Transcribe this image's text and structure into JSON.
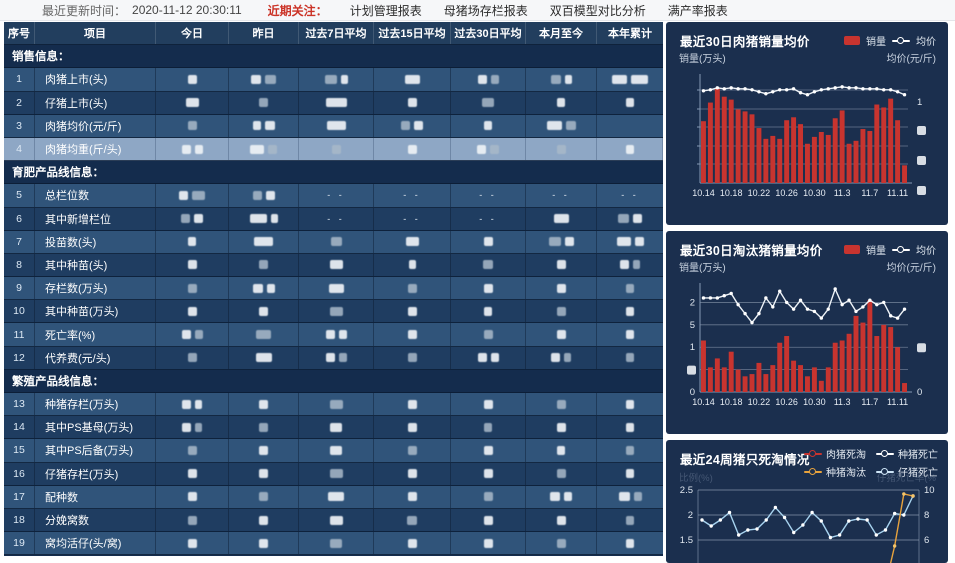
{
  "topbar": {
    "updated_label": "最近更新时间：",
    "updated_time": "2020-11-12 20:30:11",
    "focus_label": "近期关注：",
    "menu": [
      "计划管理报表",
      "母猪场存栏报表",
      "双百模型对比分析",
      "满产率报表"
    ]
  },
  "table": {
    "headers": [
      "序号",
      "项目",
      "今日",
      "昨日",
      "过去7日平均",
      "过去15日平均",
      "过去30日平均",
      "本月至今",
      "本年累计"
    ],
    "dash_text": "- -",
    "rows": [
      {
        "type": "section",
        "label": "销售信息："
      },
      {
        "type": "data",
        "no": "1",
        "label": "肉猪上市(头)",
        "cells": [
          [
            9
          ],
          [
            10,
            11
          ],
          [
            12,
            7
          ],
          [
            15
          ],
          [
            9,
            8
          ],
          [
            10,
            7
          ],
          [
            15,
            17
          ]
        ]
      },
      {
        "type": "data",
        "no": "2",
        "label": "仔猪上市(头)",
        "cells": [
          [
            13
          ],
          [
            9
          ],
          [
            21
          ],
          [
            9
          ],
          [
            12
          ],
          [
            8
          ],
          [
            8
          ]
        ]
      },
      {
        "type": "data",
        "no": "3",
        "label": "肉猪均价(元/斤)",
        "cells": [
          [
            9
          ],
          [
            8,
            10
          ],
          [
            19
          ],
          [
            9,
            9
          ],
          [
            8
          ],
          [
            15,
            10
          ],
          []
        ]
      },
      {
        "type": "data",
        "no": "4",
        "label": "肉猪均重(斤/头)",
        "highlight": true,
        "cells": [
          [
            9,
            8
          ],
          [
            14,
            9
          ],
          [
            9
          ],
          [
            9
          ],
          [
            9,
            9
          ],
          [
            9
          ],
          [
            8
          ]
        ]
      },
      {
        "type": "section",
        "label": "育肥产品线信息："
      },
      {
        "type": "data",
        "no": "5",
        "label": "总栏位数",
        "cells": [
          [
            9,
            13
          ],
          [
            9,
            9
          ],
          [
            "--"
          ],
          [
            "--"
          ],
          [
            "--"
          ],
          [
            "--"
          ],
          [
            "--"
          ]
        ]
      },
      {
        "type": "data",
        "no": "6",
        "label": "其中新增栏位",
        "cells": [
          [
            9,
            9
          ],
          [
            17,
            7
          ],
          [
            "--"
          ],
          [
            "--"
          ],
          [
            "--"
          ],
          [
            15
          ],
          [
            11,
            9
          ]
        ]
      },
      {
        "type": "data",
        "no": "7",
        "label": "投苗数(头)",
        "cells": [
          [
            8
          ],
          [
            19
          ],
          [
            11
          ],
          [
            13
          ],
          [
            9
          ],
          [
            12,
            9
          ],
          [
            14,
            9
          ]
        ]
      },
      {
        "type": "data",
        "no": "8",
        "label": "其中种苗(头)",
        "cells": [
          [
            9
          ],
          [
            9
          ],
          [
            13
          ],
          [
            7
          ],
          [
            10
          ],
          [
            9
          ],
          [
            9,
            7
          ]
        ]
      },
      {
        "type": "data",
        "no": "9",
        "label": "存栏数(万头)",
        "cells": [
          [
            9
          ],
          [
            10,
            8
          ],
          [
            15
          ],
          [
            9
          ],
          [
            9
          ],
          [
            9
          ],
          [
            8
          ]
        ]
      },
      {
        "type": "data",
        "no": "10",
        "label": "其中种苗(万头)",
        "cells": [
          [
            9
          ],
          [
            9
          ],
          [
            13
          ],
          [
            9
          ],
          [
            8
          ],
          [
            9
          ],
          [
            8
          ]
        ]
      },
      {
        "type": "data",
        "no": "11",
        "label": "死亡率(%)",
        "cells": [
          [
            9,
            8
          ],
          [
            15
          ],
          [
            9,
            8
          ],
          [
            9
          ],
          [
            9
          ],
          [
            9
          ],
          [
            8
          ]
        ]
      },
      {
        "type": "data",
        "no": "12",
        "label": "代养费(元/头)",
        "cells": [
          [
            9
          ],
          [
            16
          ],
          [
            9,
            8
          ],
          [
            9
          ],
          [
            9,
            8
          ],
          [
            9,
            7
          ],
          [
            8
          ]
        ]
      },
      {
        "type": "section",
        "label": "繁殖产品线信息："
      },
      {
        "type": "data",
        "no": "13",
        "label": "种猪存栏(万头)",
        "cells": [
          [
            9,
            7
          ],
          [
            9
          ],
          [
            13
          ],
          [
            9
          ],
          [
            9
          ],
          [
            9
          ],
          [
            8
          ]
        ]
      },
      {
        "type": "data",
        "no": "14",
        "label": "其中PS基母(万头)",
        "cells": [
          [
            9,
            7
          ],
          [
            9
          ],
          [
            12
          ],
          [
            9
          ],
          [
            8
          ],
          [
            9
          ],
          [
            8
          ]
        ]
      },
      {
        "type": "data",
        "no": "15",
        "label": "其中PS后备(万头)",
        "cells": [
          [
            9
          ],
          [
            9
          ],
          [
            12
          ],
          [
            9
          ],
          [
            9
          ],
          [
            8
          ],
          [
            8
          ]
        ]
      },
      {
        "type": "data",
        "no": "16",
        "label": "仔猪存栏(万头)",
        "cells": [
          [
            9
          ],
          [
            9
          ],
          [
            13
          ],
          [
            9
          ],
          [
            9
          ],
          [
            9
          ],
          [
            8
          ]
        ]
      },
      {
        "type": "data",
        "no": "17",
        "label": "配种数",
        "cells": [
          [
            9
          ],
          [
            9
          ],
          [
            16
          ],
          [
            9
          ],
          [
            9
          ],
          [
            10,
            8
          ],
          [
            11,
            8
          ]
        ]
      },
      {
        "type": "data",
        "no": "18",
        "label": "分娩窝数",
        "cells": [
          [
            9
          ],
          [
            9
          ],
          [
            13
          ],
          [
            10
          ],
          [
            9
          ],
          [
            9
          ],
          [
            8
          ]
        ]
      },
      {
        "type": "data",
        "no": "19",
        "label": "窝均活仔(头/窝)",
        "cells": [
          [
            9
          ],
          [
            9
          ],
          [
            12
          ],
          [
            9
          ],
          [
            9
          ],
          [
            9
          ],
          [
            8
          ]
        ]
      }
    ]
  },
  "chart_data": [
    {
      "type": "bar",
      "title": "最近30日肉猪销量均价",
      "legend": [
        "销量",
        "均价"
      ],
      "ylabel_left": "销量(万头)",
      "ylabel_right": "均价(元/斤)",
      "n_points": 30,
      "x_tick_labels": [
        "10.14",
        "10.18",
        "10.22",
        "10.26",
        "10.30",
        "11.3",
        "11.7",
        "11.11"
      ],
      "x_tick_indices": [
        0,
        4,
        8,
        12,
        16,
        20,
        24,
        28
      ],
      "right_axis_visible_tick": "1",
      "ylim": [
        0,
        1.05
      ],
      "series": [
        {
          "name": "销量",
          "type": "bar",
          "color": "#c8342f",
          "values": [
            0.63,
            0.82,
            0.97,
            0.88,
            0.85,
            0.75,
            0.73,
            0.7,
            0.56,
            0.45,
            0.48,
            0.45,
            0.64,
            0.67,
            0.6,
            0.4,
            0.47,
            0.52,
            0.49,
            0.66,
            0.74,
            0.4,
            0.43,
            0.55,
            0.53,
            0.8,
            0.77,
            0.86,
            0.64,
            0.18
          ]
        },
        {
          "name": "均价",
          "type": "line",
          "color": "#eef3f8",
          "values": [
            0.94,
            0.95,
            0.97,
            0.96,
            0.97,
            0.96,
            0.96,
            0.95,
            0.93,
            0.91,
            0.93,
            0.95,
            0.95,
            0.96,
            0.92,
            0.9,
            0.93,
            0.95,
            0.96,
            0.97,
            0.98,
            0.97,
            0.97,
            0.96,
            0.96,
            0.96,
            0.95,
            0.95,
            0.93,
            0.9
          ]
        }
      ]
    },
    {
      "type": "bar",
      "title": "最近30日淘汰猪销量均价",
      "legend": [
        "销量",
        "均价"
      ],
      "ylabel_left": "销量(万头)",
      "ylabel_right": "均价(元/斤)",
      "n_points": 30,
      "x_tick_labels": [
        "10.14",
        "10.18",
        "10.22",
        "10.26",
        "10.30",
        "11.3",
        "11.7",
        "11.11"
      ],
      "x_tick_indices": [
        0,
        4,
        8,
        12,
        16,
        20,
        24,
        28
      ],
      "left_ticks_visible": [
        "2",
        "5",
        "1",
        "0"
      ],
      "right_ticks_visible": [
        "0"
      ],
      "ylim": [
        0,
        2.3
      ],
      "series": [
        {
          "name": "销量",
          "type": "bar",
          "color": "#c8342f",
          "values": [
            1.15,
            0.55,
            0.75,
            0.55,
            0.9,
            0.5,
            0.35,
            0.4,
            0.65,
            0.4,
            0.6,
            1.1,
            1.25,
            0.7,
            0.6,
            0.35,
            0.55,
            0.25,
            0.55,
            1.1,
            1.15,
            1.3,
            1.7,
            1.55,
            2.05,
            1.25,
            1.5,
            1.45,
            1.0,
            0.2
          ]
        },
        {
          "name": "均价",
          "type": "line",
          "color": "#eef3f8",
          "values": [
            2.1,
            2.1,
            2.1,
            2.15,
            2.2,
            1.95,
            1.75,
            1.55,
            1.75,
            2.1,
            1.9,
            2.25,
            2.0,
            1.85,
            2.05,
            1.85,
            1.8,
            1.65,
            1.85,
            2.3,
            1.95,
            2.05,
            1.8,
            1.9,
            2.05,
            1.95,
            2.0,
            1.7,
            1.65,
            1.85
          ]
        }
      ]
    },
    {
      "type": "line",
      "title": "最近24周猪只死淘情况",
      "legend": [
        "肉猪死淘",
        "种猪死亡",
        "种猪淘汰",
        "仔猪死亡"
      ],
      "legend_colors": [
        "#c8342f",
        "#ffffff",
        "#e8a33d",
        "#cfe6f7"
      ],
      "ylabel_left": "比例(%)",
      "ylabel_right": "仔猪死亡率(%",
      "n_points": 24,
      "left_ticks_visible": [
        "2.5",
        "2",
        "1.5"
      ],
      "right_ticks_visible": [
        "10",
        "8",
        "6"
      ],
      "ylim_visible": [
        1.5,
        2.5
      ],
      "series": [
        {
          "name": "仔猪死亡",
          "color": "#a8d4f0",
          "values": [
            1.9,
            1.78,
            1.9,
            2.05,
            1.6,
            1.7,
            1.72,
            1.9,
            2.15,
            1.95,
            1.65,
            1.8,
            2.05,
            1.88,
            1.55,
            1.6,
            1.88,
            1.92,
            1.9,
            1.6,
            1.7,
            2.03,
            2.0,
            2.38
          ]
        },
        {
          "name": "种猪淘汰",
          "color": "#e8a33d",
          "values": [
            null,
            null,
            null,
            null,
            null,
            null,
            null,
            null,
            null,
            null,
            null,
            null,
            null,
            null,
            null,
            null,
            null,
            null,
            null,
            null,
            0.6,
            1.38,
            2.42,
            2.38
          ]
        }
      ]
    }
  ]
}
